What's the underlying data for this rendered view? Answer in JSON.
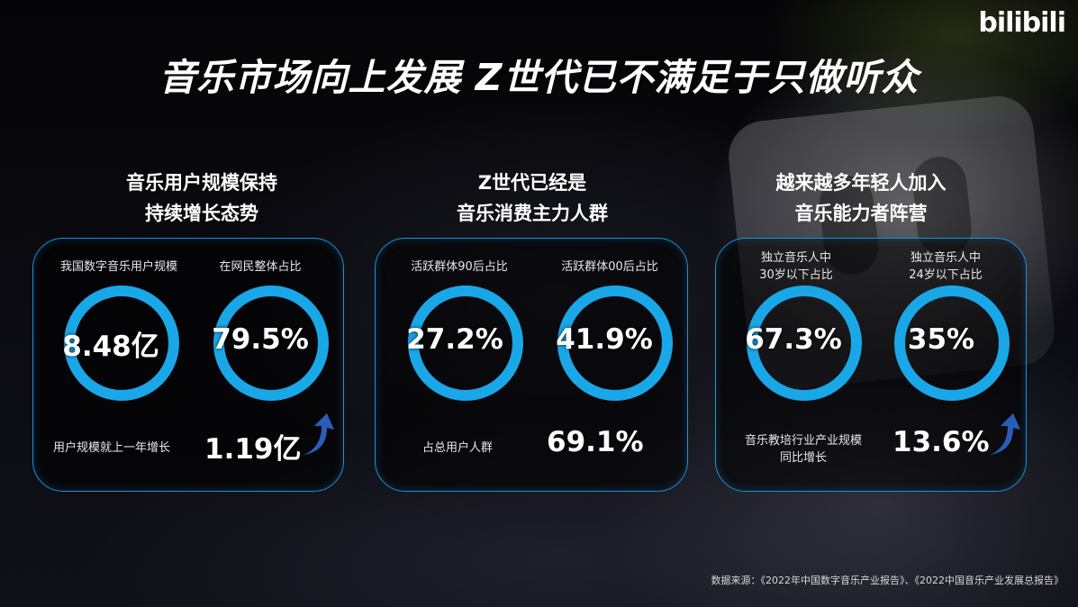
{
  "logo": "bilibili",
  "title": "音乐市场向上发展  Z世代已不满足于只做听众",
  "columns": [
    {
      "heading_line1": "音乐用户规模保持",
      "heading_line2": "持续增长态势",
      "metrics": [
        {
          "label": "我国数字音乐用户规模",
          "value": "8.48亿"
        },
        {
          "label": "在网民整体占比",
          "value": "79.5%"
        }
      ],
      "bottom_label": "用户规模就上一年增长",
      "bottom_value": "1.19亿"
    },
    {
      "heading_line1": "Z世代已经是",
      "heading_line2": "音乐消费主力人群",
      "metrics": [
        {
          "label": "活跃群体90后占比",
          "value": "27.2%"
        },
        {
          "label": "活跃群体00后占比",
          "value": "41.9%"
        }
      ],
      "bottom_label": "占总用户人群",
      "bottom_value": "69.1%"
    },
    {
      "heading_line1": "越来越多年轻人加入",
      "heading_line2": "音乐能力者阵营",
      "metrics": [
        {
          "label_line1": "独立音乐人中",
          "label_line2": "30岁以下占比",
          "value": "67.3%"
        },
        {
          "label_line1": "独立音乐人中",
          "label_line2": "24岁以下占比",
          "value": "35%"
        }
      ],
      "bottom_label_line1": "音乐教培行业产业规模",
      "bottom_label_line2": "同比增长",
      "bottom_value": "13.6%"
    }
  ],
  "footer": "数据来源：《2022年中国数字音乐产业报告》、《2022中国音乐产业发展总报告》",
  "colors": {
    "ring": "#1aa7e8",
    "panel_border": "#1e90d6",
    "arrow": "#2a5db8"
  },
  "icons": [
    "up-arrow-icon"
  ]
}
